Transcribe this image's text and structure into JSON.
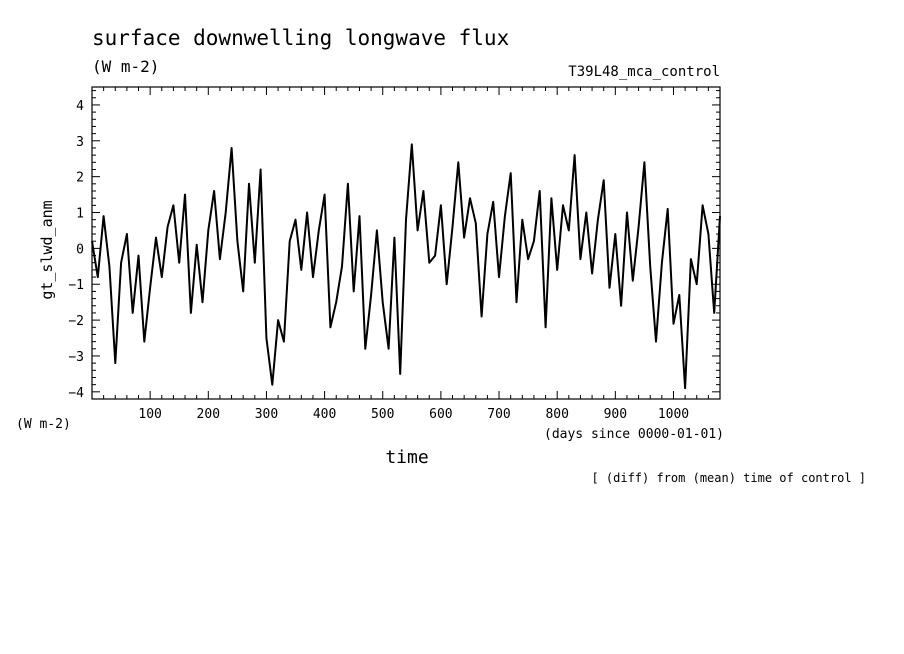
{
  "chart_data": {
    "type": "line",
    "title": "surface downwelling longwave flux",
    "units_label": "(W m-2)",
    "run_label": "T39L48_mca_control",
    "ylabel": "gt_slwd_anm",
    "y_units_label": "(W m-2)",
    "xlabel": "time",
    "x_units_label": "(days since 0000-01-01)",
    "footnote": "[ (diff) from (mean) time of control ]",
    "xlim": [
      0,
      1080
    ],
    "ylim": [
      -4.2,
      4.5
    ],
    "x_ticks": [
      100,
      200,
      300,
      400,
      500,
      600,
      700,
      800,
      900,
      1000
    ],
    "y_ticks": [
      -4,
      -3,
      -2,
      -1,
      0,
      1,
      2,
      3,
      4
    ],
    "grid": false,
    "series": [
      {
        "x": [
          0,
          10,
          20,
          30,
          40,
          50,
          60,
          70,
          80,
          90,
          100,
          110,
          120,
          130,
          140,
          150,
          160,
          170,
          180,
          190,
          200,
          210,
          220,
          230,
          240,
          250,
          260,
          270,
          280,
          290,
          300,
          310,
          320,
          330,
          340,
          350,
          360,
          370,
          380,
          390,
          400,
          410,
          420,
          430,
          440,
          450,
          460,
          470,
          480,
          490,
          500,
          510,
          520,
          530,
          540,
          550,
          560,
          570,
          580,
          590,
          600,
          610,
          620,
          630,
          640,
          650,
          660,
          670,
          680,
          690,
          700,
          710,
          720,
          730,
          740,
          750,
          760,
          770,
          780,
          790,
          800,
          810,
          820,
          830,
          840,
          850,
          860,
          870,
          880,
          890,
          900,
          910,
          920,
          930,
          940,
          950,
          960,
          970,
          980,
          990,
          1000,
          1010,
          1020,
          1030,
          1040,
          1050,
          1060,
          1070,
          1080
        ],
        "values": [
          0.2,
          -0.8,
          0.9,
          -0.5,
          -3.2,
          -0.4,
          0.4,
          -1.8,
          -0.2,
          -2.6,
          -1.1,
          0.3,
          -0.8,
          0.6,
          1.2,
          -0.4,
          1.5,
          -1.8,
          0.1,
          -1.5,
          0.5,
          1.6,
          -0.3,
          1.0,
          2.8,
          0.2,
          -1.2,
          1.8,
          -0.4,
          2.2,
          -2.5,
          -3.8,
          -2.0,
          -2.6,
          0.2,
          0.8,
          -0.6,
          1.0,
          -0.8,
          0.5,
          1.5,
          -2.2,
          -1.5,
          -0.5,
          1.8,
          -1.2,
          0.9,
          -2.8,
          -1.3,
          0.5,
          -1.5,
          -2.8,
          0.3,
          -3.5,
          0.8,
          2.9,
          0.5,
          1.6,
          -0.4,
          -0.2,
          1.2,
          -1.0,
          0.6,
          2.4,
          0.3,
          1.4,
          0.7,
          -1.9,
          0.4,
          1.3,
          -0.8,
          0.9,
          2.1,
          -1.5,
          0.8,
          -0.3,
          0.2,
          1.6,
          -2.2,
          1.4,
          -0.6,
          1.2,
          0.5,
          2.6,
          -0.3,
          1.0,
          -0.7,
          0.8,
          1.9,
          -1.1,
          0.4,
          -1.6,
          1.0,
          -0.9,
          0.6,
          2.4,
          -0.5,
          -2.6,
          -0.4,
          1.1,
          -2.1,
          -1.3,
          -3.9,
          -0.3,
          -1.0,
          1.2,
          0.4,
          -1.8,
          0.9
        ]
      }
    ]
  }
}
